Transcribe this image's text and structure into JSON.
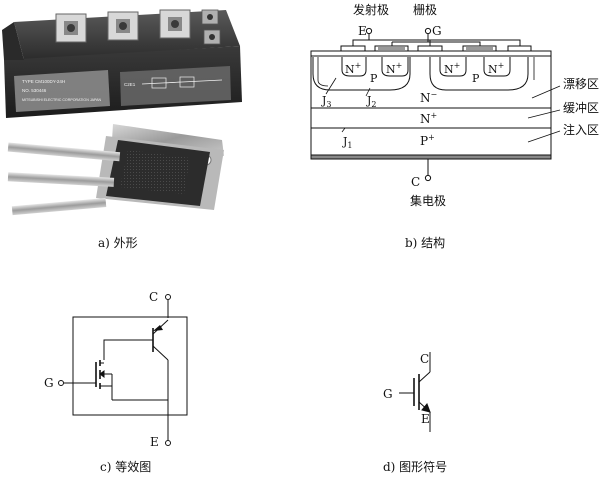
{
  "panel_a": {
    "caption": "a) 外形",
    "module_label_line1": "TYPE CM100DY-24H",
    "module_label_line2": "NO. 530446",
    "module_label_line3": "MITSUBISHI ELECTRIC CORPORATION JAPAN",
    "module_side_mark": "C2E1"
  },
  "panel_b": {
    "caption": "b) 结构",
    "emitter_title": "发射极",
    "gate_title": "栅极",
    "emitter_letter": "E",
    "gate_letter": "G",
    "collector_letter": "C",
    "collector_title": "集电极",
    "n_plus": "N",
    "sup_plus": "+",
    "p": "P",
    "n_minus": "N",
    "sup_minus": "−",
    "j3": "J",
    "j3_sub": "3",
    "j2": "J",
    "j2_sub": "2",
    "j1": "J",
    "j1_sub": "1",
    "n_plus_buffer": "N",
    "p_plus": "P",
    "drift_region": "漂移区",
    "buffer_region": "缓冲区",
    "injection_region": "注入区"
  },
  "panel_c": {
    "caption": "c) 等效图",
    "c_letter": "C",
    "e_letter": "E",
    "g_letter": "G"
  },
  "panel_d": {
    "caption": "d) 图形符号",
    "c_letter": "C",
    "e_letter": "E",
    "g_letter": "G"
  }
}
